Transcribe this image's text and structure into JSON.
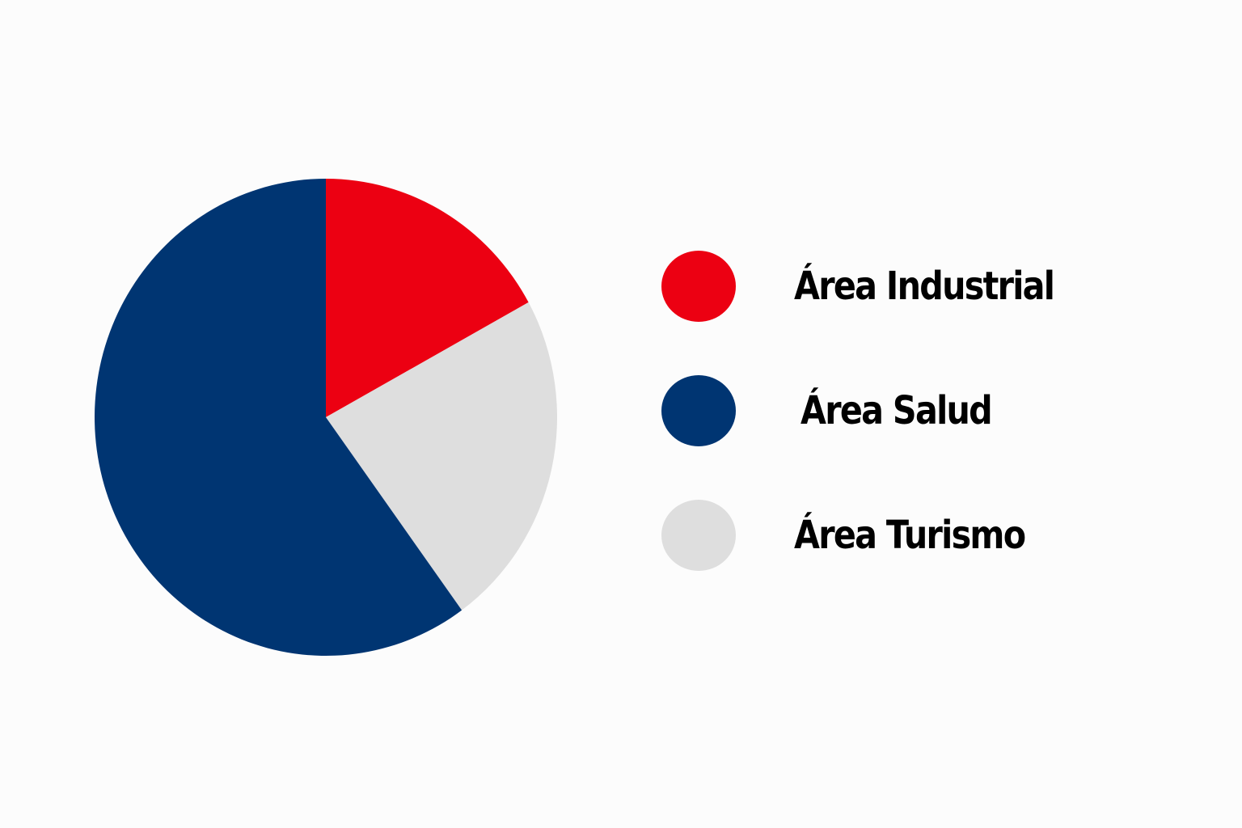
{
  "chart_data": {
    "type": "pie",
    "title": "",
    "categories": [
      "Área Industrial",
      "Área Turismo",
      "Área Salud"
    ],
    "values": [
      17,
      23,
      60
    ],
    "colors": [
      "#ec0012",
      "#dedede",
      "#003572"
    ],
    "start_angle_deg": 0,
    "direction": "clockwise",
    "legend": {
      "placement": "right",
      "items": [
        {
          "label": "Área Industrial",
          "color": "#ec0012"
        },
        {
          "label": "Área Salud",
          "color": "#003572"
        },
        {
          "label": "Área Turismo",
          "color": "#dedede"
        }
      ]
    }
  }
}
